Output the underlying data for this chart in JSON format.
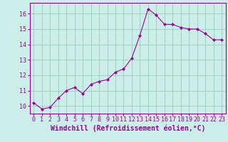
{
  "x": [
    0,
    1,
    2,
    3,
    4,
    5,
    6,
    7,
    8,
    9,
    10,
    11,
    12,
    13,
    14,
    15,
    16,
    17,
    18,
    19,
    20,
    21,
    22,
    23
  ],
  "y": [
    10.2,
    9.8,
    9.9,
    10.5,
    11.0,
    11.2,
    10.8,
    11.4,
    11.6,
    11.7,
    12.2,
    12.4,
    13.1,
    14.6,
    16.3,
    15.9,
    15.3,
    15.3,
    15.1,
    15.0,
    15.0,
    14.7,
    14.3,
    14.3
  ],
  "xlim": [
    -0.5,
    23.5
  ],
  "ylim": [
    9.5,
    16.7
  ],
  "yticks": [
    10,
    11,
    12,
    13,
    14,
    15,
    16
  ],
  "xticks": [
    0,
    1,
    2,
    3,
    4,
    5,
    6,
    7,
    8,
    9,
    10,
    11,
    12,
    13,
    14,
    15,
    16,
    17,
    18,
    19,
    20,
    21,
    22,
    23
  ],
  "xlabel": "Windchill (Refroidissement éolien,°C)",
  "line_color": "#990099",
  "marker": "D",
  "marker_size": 2.0,
  "bg_color": "#cceee8",
  "grid_color": "#99ccbb",
  "xlabel_fontsize": 7,
  "tick_fontsize": 6,
  "fig_width": 3.2,
  "fig_height": 2.0,
  "dpi": 100
}
